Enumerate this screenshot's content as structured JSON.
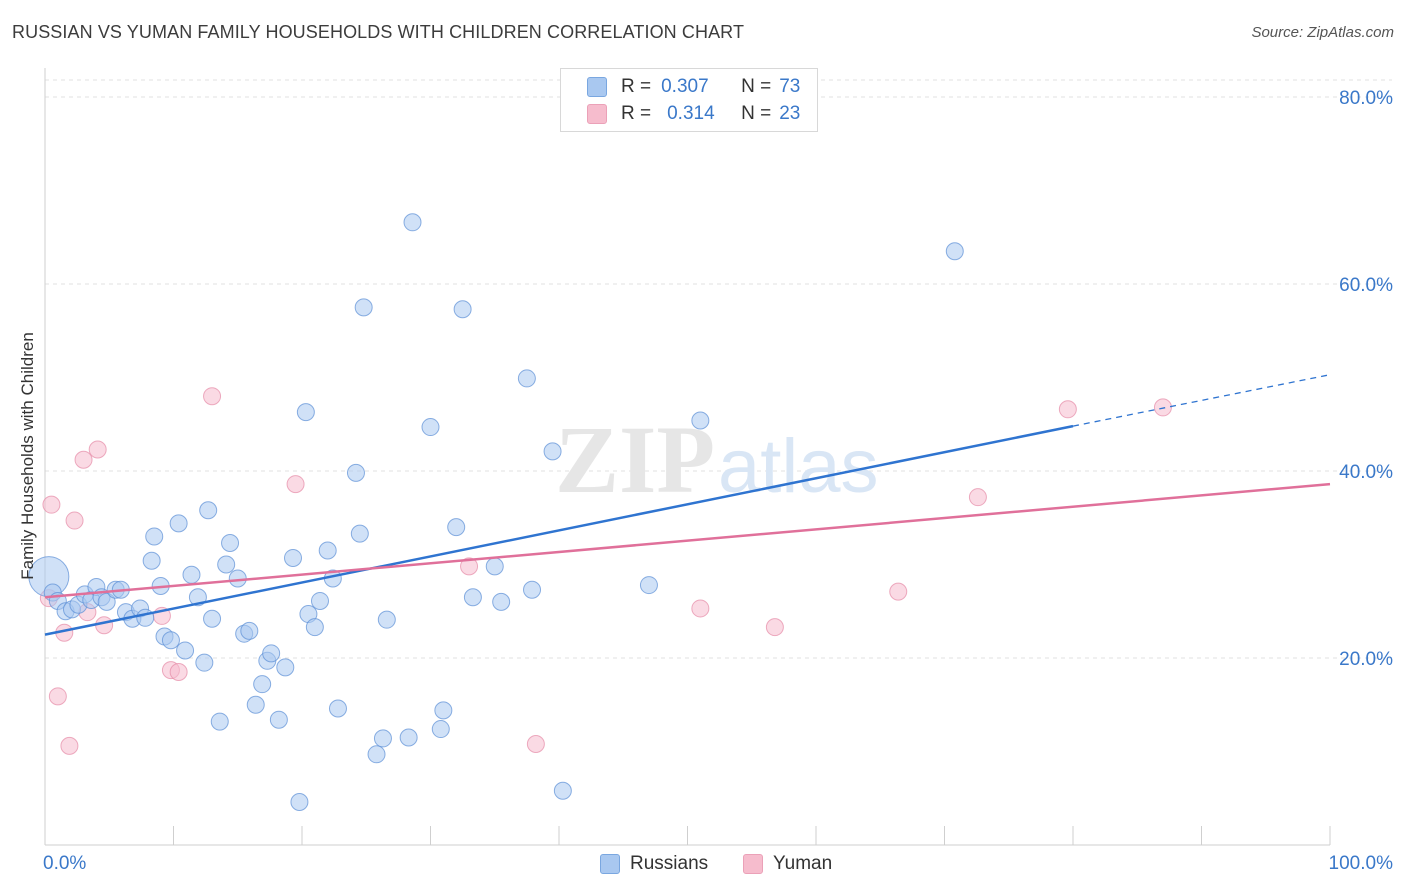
{
  "title": "RUSSIAN VS YUMAN FAMILY HOUSEHOLDS WITH CHILDREN CORRELATION CHART",
  "source": "Source: ZipAtlas.com",
  "watermark": {
    "zip": "ZIP",
    "atlas": "atlas"
  },
  "legend": {
    "rows": [
      {
        "r_label": "R =",
        "r_value": "0.307",
        "n_label": "N =",
        "n_value": "73",
        "color": "#a9c8f0"
      },
      {
        "r_label": "R =",
        "r_value": "0.314",
        "n_label": "N =",
        "n_value": "23",
        "color": "#f6bccd"
      }
    ]
  },
  "bottom_legend": {
    "russians": "Russians",
    "yuman": "Yuman"
  },
  "chart_data": {
    "type": "scatter",
    "ylabel": "Family Households with Children",
    "xlabel": "",
    "xlim": [
      0,
      100
    ],
    "ylim": [
      0,
      80
    ],
    "x_tick_labels": [
      "0.0%",
      "100.0%"
    ],
    "y_ticks": [
      20,
      40,
      60,
      80
    ],
    "y_tick_labels": [
      "20.0%",
      "40.0%",
      "60.0%",
      "80.0%"
    ],
    "grid": true,
    "legend_placement": "top-center",
    "colors": {
      "russians_fill": "#a9c8f0",
      "russians_stroke": "#5b8fd6",
      "russians_line": "#2f74d0",
      "yuman_fill": "#f6bccd",
      "yuman_stroke": "#e58aa6",
      "yuman_line": "#e0709a",
      "axis_text": "#3a78c9"
    },
    "series": [
      {
        "name": "Russians",
        "trend": {
          "x": [
            0,
            80
          ],
          "y": [
            22.5,
            44.8
          ],
          "dashed_to": [
            100,
            50.3
          ]
        },
        "points": [
          [
            0.3,
            28.7
          ],
          [
            0.6,
            27.0
          ],
          [
            1.0,
            26.1
          ],
          [
            1.6,
            25.0
          ],
          [
            2.1,
            25.2
          ],
          [
            2.6,
            25.7
          ],
          [
            3.1,
            26.8
          ],
          [
            3.6,
            26.2
          ],
          [
            4.0,
            27.6
          ],
          [
            4.4,
            26.5
          ],
          [
            4.8,
            26.0
          ],
          [
            5.5,
            27.3
          ],
          [
            5.9,
            27.3
          ],
          [
            6.3,
            24.9
          ],
          [
            6.8,
            24.2
          ],
          [
            7.4,
            25.3
          ],
          [
            7.8,
            24.3
          ],
          [
            8.3,
            30.4
          ],
          [
            8.5,
            33.0
          ],
          [
            9.0,
            27.7
          ],
          [
            9.3,
            22.3
          ],
          [
            9.8,
            21.9
          ],
          [
            10.4,
            34.4
          ],
          [
            10.9,
            20.8
          ],
          [
            11.4,
            28.9
          ],
          [
            11.9,
            26.5
          ],
          [
            12.4,
            19.5
          ],
          [
            12.7,
            35.8
          ],
          [
            13.0,
            24.2
          ],
          [
            13.6,
            13.2
          ],
          [
            14.1,
            30.0
          ],
          [
            14.4,
            32.3
          ],
          [
            15.0,
            28.5
          ],
          [
            15.5,
            22.6
          ],
          [
            15.9,
            22.9
          ],
          [
            16.4,
            15.0
          ],
          [
            16.9,
            17.2
          ],
          [
            17.3,
            19.7
          ],
          [
            17.6,
            20.5
          ],
          [
            18.2,
            13.4
          ],
          [
            18.7,
            19.0
          ],
          [
            19.3,
            30.7
          ],
          [
            19.8,
            4.6
          ],
          [
            20.3,
            46.3
          ],
          [
            20.5,
            24.7
          ],
          [
            21.0,
            23.3
          ],
          [
            21.4,
            26.1
          ],
          [
            22.0,
            31.5
          ],
          [
            22.4,
            28.5
          ],
          [
            22.8,
            14.6
          ],
          [
            24.2,
            39.8
          ],
          [
            24.5,
            33.3
          ],
          [
            24.8,
            57.5
          ],
          [
            25.8,
            9.7
          ],
          [
            26.3,
            11.4
          ],
          [
            26.6,
            24.1
          ],
          [
            28.3,
            11.5
          ],
          [
            28.6,
            66.6
          ],
          [
            30.0,
            44.7
          ],
          [
            30.8,
            12.4
          ],
          [
            31.0,
            14.4
          ],
          [
            32.0,
            34.0
          ],
          [
            32.5,
            57.3
          ],
          [
            33.3,
            26.5
          ],
          [
            35.0,
            29.8
          ],
          [
            35.5,
            26.0
          ],
          [
            37.5,
            49.9
          ],
          [
            37.9,
            27.3
          ],
          [
            39.5,
            42.1
          ],
          [
            40.3,
            5.8
          ],
          [
            47.0,
            27.8
          ],
          [
            51.0,
            45.4
          ],
          [
            70.8,
            63.5
          ]
        ]
      },
      {
        "name": "Yuman",
        "trend": {
          "x": [
            0,
            100
          ],
          "y": [
            26.5,
            38.6
          ]
        },
        "points": [
          [
            0.3,
            26.4
          ],
          [
            0.5,
            36.4
          ],
          [
            1.0,
            15.9
          ],
          [
            1.5,
            22.7
          ],
          [
            1.9,
            10.6
          ],
          [
            2.3,
            34.7
          ],
          [
            3.0,
            41.2
          ],
          [
            3.3,
            24.9
          ],
          [
            4.1,
            42.3
          ],
          [
            4.6,
            23.5
          ],
          [
            9.1,
            24.5
          ],
          [
            9.8,
            18.7
          ],
          [
            10.4,
            18.5
          ],
          [
            13.0,
            48.0
          ],
          [
            19.5,
            38.6
          ],
          [
            33.0,
            29.8
          ],
          [
            38.2,
            10.8
          ],
          [
            51.0,
            25.3
          ],
          [
            56.8,
            23.3
          ],
          [
            66.4,
            27.1
          ],
          [
            72.6,
            37.2
          ],
          [
            79.6,
            46.6
          ],
          [
            87.0,
            46.8
          ]
        ]
      }
    ]
  }
}
